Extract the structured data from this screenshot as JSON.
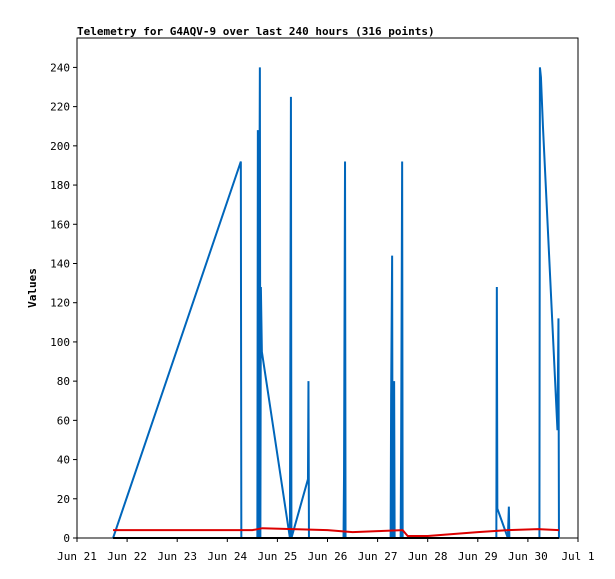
{
  "chart_data": {
    "type": "line",
    "title": "Telemetry for G4AQV-9 over last 240 hours (316 points)",
    "y_label": "Values",
    "xlim": [
      0,
      10
    ],
    "xticks": [
      {
        "value": 0,
        "label": "Jun 21"
      },
      {
        "value": 1,
        "label": "Jun 22"
      },
      {
        "value": 2,
        "label": "Jun 23"
      },
      {
        "value": 3,
        "label": "Jun 24"
      },
      {
        "value": 4,
        "label": "Jun 25"
      },
      {
        "value": 5,
        "label": "Jun 26"
      },
      {
        "value": 6,
        "label": "Jun 27"
      },
      {
        "value": 7,
        "label": "Jun 28"
      },
      {
        "value": 8,
        "label": "Jun 29"
      },
      {
        "value": 9,
        "label": "Jun 30"
      },
      {
        "value": 10,
        "label": "Jul 1"
      }
    ],
    "ylim": [
      0,
      255
    ],
    "yticks": [
      0,
      20,
      40,
      60,
      80,
      100,
      120,
      140,
      160,
      180,
      200,
      220,
      240
    ],
    "grid": false,
    "series": [
      {
        "color": "#0066bb",
        "x": [
          0.72,
          3.27,
          3.28,
          3.6,
          3.61,
          3.62,
          3.65,
          3.66,
          3.67,
          3.69,
          4.25,
          4.27,
          4.28,
          4.61,
          4.62,
          4.63,
          5.32,
          5.33,
          5.35,
          5.36,
          6.26,
          6.27,
          6.29,
          6.3,
          6.33,
          6.34,
          6.46,
          6.47,
          6.49,
          6.5,
          8.37,
          8.38,
          8.39,
          8.6,
          8.62,
          8.63,
          9.23,
          9.24,
          9.26,
          9.3,
          9.59,
          9.61,
          9.62
        ],
        "values": [
          0,
          192,
          0,
          0,
          208,
          0,
          240,
          0,
          128,
          95,
          0,
          225,
          0,
          30,
          80,
          0,
          0,
          32,
          192,
          0,
          0,
          72,
          144,
          0,
          80,
          0,
          0,
          48,
          192,
          0,
          0,
          128,
          15,
          0,
          16,
          0,
          0,
          240,
          235,
          210,
          55,
          112,
          0
        ]
      },
      {
        "color": "#dd0000",
        "x": [
          0.72,
          3.5,
          3.7,
          5.0,
          5.5,
          6.0,
          6.5,
          6.6,
          7.0,
          8.0,
          8.6,
          9.2,
          9.62
        ],
        "values": [
          4,
          4,
          5,
          4,
          3,
          3.5,
          4,
          1,
          1,
          3,
          4,
          4.5,
          4
        ]
      },
      {
        "color": "#000000",
        "x": [
          0.72,
          9.62
        ],
        "values": [
          0,
          0
        ]
      }
    ]
  }
}
